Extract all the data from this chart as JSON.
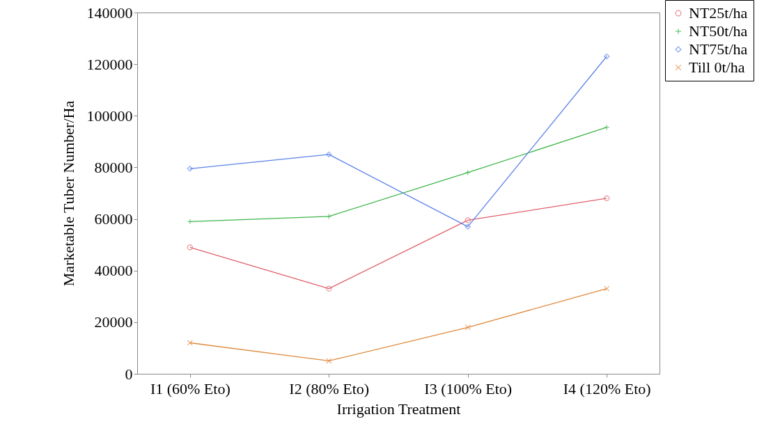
{
  "chart_data": {
    "type": "line",
    "xlabel": "Irrigation Treatment",
    "ylabel": "Marketable Tuber Number/Ha",
    "categories": [
      "I1 (60% Eto)",
      "I2 (80% Eto)",
      "I3 (100% Eto)",
      "I4 (120% Eto)"
    ],
    "series": [
      {
        "name": "NT25t/ha",
        "color": "#e0606a",
        "marker": "circle",
        "values": [
          49000,
          33000,
          59500,
          68000
        ]
      },
      {
        "name": "NT50t/ha",
        "color": "#3db54a",
        "marker": "plus",
        "values": [
          59000,
          61000,
          78000,
          95500
        ]
      },
      {
        "name": "NT75t/ha",
        "color": "#5b82e8",
        "marker": "diamond",
        "values": [
          79500,
          85000,
          57000,
          123000
        ]
      },
      {
        "name": "Till 0t/ha",
        "color": "#e0883a",
        "marker": "cross",
        "values": [
          12000,
          5000,
          18000,
          33000
        ]
      }
    ],
    "ylim": [
      0,
      140000
    ],
    "yticks": [
      0,
      20000,
      40000,
      60000,
      80000,
      100000,
      120000,
      140000
    ],
    "grid": false,
    "legend": "top right",
    "line_style": "solid"
  }
}
